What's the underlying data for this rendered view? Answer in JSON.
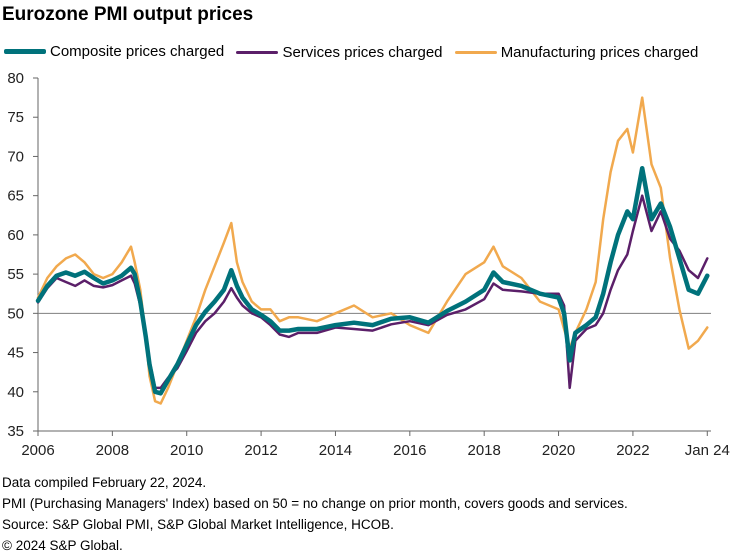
{
  "title": "Eurozone PMI output prices",
  "colors": {
    "composite": "#00727b",
    "services": "#5b1f69",
    "manufacturing": "#f1a94e"
  },
  "notes": [
    "Data compiled February 22, 2024.",
    "PMI (Purchasing Managers' Index) based on 50 = no change on prior month, covers goods and services.",
    "Source: S&P Global PMI, S&P Global Market Intelligence, HCOB.",
    "© 2024 S&P Global."
  ],
  "chart_data": {
    "type": "line",
    "title": "Eurozone PMI output prices",
    "xlabel": "",
    "ylabel": "",
    "xlim": [
      2006.0,
      2024.1
    ],
    "ylim": [
      35,
      80
    ],
    "yticks": [
      35,
      40,
      45,
      50,
      55,
      60,
      65,
      70,
      75,
      80
    ],
    "xticks": [
      {
        "value": 2006.0,
        "label": "2006"
      },
      {
        "value": 2008.0,
        "label": "2008"
      },
      {
        "value": 2010.0,
        "label": "2010"
      },
      {
        "value": 2012.0,
        "label": "2012"
      },
      {
        "value": 2014.0,
        "label": "2014"
      },
      {
        "value": 2016.0,
        "label": "2016"
      },
      {
        "value": 2018.0,
        "label": "2018"
      },
      {
        "value": 2020.0,
        "label": "2020"
      },
      {
        "value": 2022.0,
        "label": "2022"
      },
      {
        "value": 2024.0,
        "label": "Jan 24"
      }
    ],
    "reference_line": 50,
    "grid": false,
    "legend_position": "top",
    "series": [
      {
        "name": "Composite prices charged",
        "key": "composite",
        "points": [
          [
            2006.0,
            51.6
          ],
          [
            2006.25,
            53.5
          ],
          [
            2006.5,
            54.8
          ],
          [
            2006.75,
            55.2
          ],
          [
            2007.0,
            54.8
          ],
          [
            2007.25,
            55.3
          ],
          [
            2007.5,
            54.5
          ],
          [
            2007.75,
            53.8
          ],
          [
            2008.0,
            54.2
          ],
          [
            2008.25,
            54.8
          ],
          [
            2008.5,
            55.8
          ],
          [
            2008.6,
            55.0
          ],
          [
            2008.75,
            51.5
          ],
          [
            2008.9,
            47.0
          ],
          [
            2009.0,
            43.5
          ],
          [
            2009.15,
            40.0
          ],
          [
            2009.3,
            39.8
          ],
          [
            2009.5,
            41.5
          ],
          [
            2009.75,
            43.5
          ],
          [
            2010.0,
            46.0
          ],
          [
            2010.25,
            48.5
          ],
          [
            2010.5,
            50.2
          ],
          [
            2010.75,
            51.5
          ],
          [
            2011.0,
            53.0
          ],
          [
            2011.2,
            55.5
          ],
          [
            2011.35,
            53.5
          ],
          [
            2011.5,
            52.0
          ],
          [
            2011.75,
            50.5
          ],
          [
            2012.0,
            49.8
          ],
          [
            2012.25,
            49.0
          ],
          [
            2012.5,
            47.8
          ],
          [
            2012.75,
            47.8
          ],
          [
            2013.0,
            48.0
          ],
          [
            2013.5,
            48.0
          ],
          [
            2014.0,
            48.5
          ],
          [
            2014.5,
            48.8
          ],
          [
            2015.0,
            48.5
          ],
          [
            2015.5,
            49.3
          ],
          [
            2016.0,
            49.5
          ],
          [
            2016.5,
            48.8
          ],
          [
            2017.0,
            50.3
          ],
          [
            2017.5,
            51.5
          ],
          [
            2018.0,
            53.0
          ],
          [
            2018.25,
            55.2
          ],
          [
            2018.5,
            54.0
          ],
          [
            2019.0,
            53.5
          ],
          [
            2019.5,
            52.5
          ],
          [
            2020.0,
            52.0
          ],
          [
            2020.15,
            50.0
          ],
          [
            2020.3,
            44.0
          ],
          [
            2020.45,
            47.5
          ],
          [
            2020.75,
            48.5
          ],
          [
            2021.0,
            49.5
          ],
          [
            2021.2,
            52.5
          ],
          [
            2021.4,
            56.5
          ],
          [
            2021.6,
            60.0
          ],
          [
            2021.85,
            63.0
          ],
          [
            2022.0,
            62.0
          ],
          [
            2022.25,
            68.5
          ],
          [
            2022.5,
            62.0
          ],
          [
            2022.75,
            64.0
          ],
          [
            2023.0,
            61.0
          ],
          [
            2023.25,
            57.0
          ],
          [
            2023.5,
            53.0
          ],
          [
            2023.75,
            52.5
          ],
          [
            2024.0,
            54.8
          ]
        ]
      },
      {
        "name": "Services prices charged",
        "key": "services",
        "points": [
          [
            2006.0,
            51.4
          ],
          [
            2006.25,
            53.2
          ],
          [
            2006.5,
            54.5
          ],
          [
            2006.75,
            54.0
          ],
          [
            2007.0,
            53.5
          ],
          [
            2007.25,
            54.2
          ],
          [
            2007.5,
            53.5
          ],
          [
            2007.75,
            53.3
          ],
          [
            2008.0,
            53.6
          ],
          [
            2008.25,
            54.2
          ],
          [
            2008.5,
            54.8
          ],
          [
            2008.6,
            53.8
          ],
          [
            2008.75,
            51.0
          ],
          [
            2008.9,
            47.5
          ],
          [
            2009.0,
            44.0
          ],
          [
            2009.15,
            40.5
          ],
          [
            2009.3,
            40.5
          ],
          [
            2009.5,
            41.8
          ],
          [
            2009.75,
            43.0
          ],
          [
            2010.0,
            45.2
          ],
          [
            2010.25,
            47.5
          ],
          [
            2010.5,
            49.0
          ],
          [
            2010.75,
            50.0
          ],
          [
            2011.0,
            51.5
          ],
          [
            2011.2,
            53.2
          ],
          [
            2011.35,
            52.0
          ],
          [
            2011.5,
            51.0
          ],
          [
            2011.75,
            50.0
          ],
          [
            2012.0,
            49.5
          ],
          [
            2012.25,
            48.5
          ],
          [
            2012.5,
            47.3
          ],
          [
            2012.75,
            47.0
          ],
          [
            2013.0,
            47.5
          ],
          [
            2013.5,
            47.5
          ],
          [
            2014.0,
            48.2
          ],
          [
            2014.5,
            48.0
          ],
          [
            2015.0,
            47.8
          ],
          [
            2015.5,
            48.6
          ],
          [
            2016.0,
            49.0
          ],
          [
            2016.5,
            48.5
          ],
          [
            2017.0,
            49.8
          ],
          [
            2017.5,
            50.5
          ],
          [
            2018.0,
            51.8
          ],
          [
            2018.25,
            53.8
          ],
          [
            2018.5,
            53.0
          ],
          [
            2019.0,
            52.8
          ],
          [
            2019.5,
            52.5
          ],
          [
            2020.0,
            52.5
          ],
          [
            2020.15,
            51.0
          ],
          [
            2020.3,
            40.5
          ],
          [
            2020.45,
            46.5
          ],
          [
            2020.75,
            48.0
          ],
          [
            2021.0,
            48.5
          ],
          [
            2021.2,
            50.0
          ],
          [
            2021.4,
            53.0
          ],
          [
            2021.6,
            55.5
          ],
          [
            2021.85,
            57.5
          ],
          [
            2022.0,
            60.5
          ],
          [
            2022.25,
            65.0
          ],
          [
            2022.5,
            60.5
          ],
          [
            2022.75,
            63.0
          ],
          [
            2023.0,
            59.5
          ],
          [
            2023.25,
            58.0
          ],
          [
            2023.5,
            55.5
          ],
          [
            2023.75,
            54.5
          ],
          [
            2024.0,
            57.0
          ]
        ]
      },
      {
        "name": "Manufacturing prices charged",
        "key": "manufacturing",
        "points": [
          [
            2006.0,
            52.0
          ],
          [
            2006.25,
            54.5
          ],
          [
            2006.5,
            56.0
          ],
          [
            2006.75,
            57.0
          ],
          [
            2007.0,
            57.5
          ],
          [
            2007.25,
            56.5
          ],
          [
            2007.5,
            55.0
          ],
          [
            2007.75,
            54.5
          ],
          [
            2008.0,
            55.0
          ],
          [
            2008.25,
            56.5
          ],
          [
            2008.5,
            58.5
          ],
          [
            2008.6,
            56.5
          ],
          [
            2008.75,
            53.0
          ],
          [
            2008.9,
            47.0
          ],
          [
            2009.0,
            42.0
          ],
          [
            2009.15,
            38.8
          ],
          [
            2009.3,
            38.5
          ],
          [
            2009.5,
            40.5
          ],
          [
            2009.75,
            43.5
          ],
          [
            2010.0,
            46.5
          ],
          [
            2010.25,
            49.5
          ],
          [
            2010.5,
            53.0
          ],
          [
            2010.75,
            56.0
          ],
          [
            2011.0,
            59.0
          ],
          [
            2011.2,
            61.5
          ],
          [
            2011.35,
            56.5
          ],
          [
            2011.5,
            54.0
          ],
          [
            2011.75,
            51.5
          ],
          [
            2012.0,
            50.5
          ],
          [
            2012.25,
            50.5
          ],
          [
            2012.5,
            49.0
          ],
          [
            2012.75,
            49.5
          ],
          [
            2013.0,
            49.5
          ],
          [
            2013.5,
            49.0
          ],
          [
            2014.0,
            50.0
          ],
          [
            2014.5,
            51.0
          ],
          [
            2015.0,
            49.5
          ],
          [
            2015.5,
            50.0
          ],
          [
            2016.0,
            48.5
          ],
          [
            2016.5,
            47.5
          ],
          [
            2017.0,
            51.5
          ],
          [
            2017.5,
            55.0
          ],
          [
            2018.0,
            56.5
          ],
          [
            2018.25,
            58.5
          ],
          [
            2018.5,
            56.0
          ],
          [
            2019.0,
            54.5
          ],
          [
            2019.5,
            51.5
          ],
          [
            2020.0,
            50.5
          ],
          [
            2020.15,
            48.0
          ],
          [
            2020.3,
            45.5
          ],
          [
            2020.45,
            47.5
          ],
          [
            2020.75,
            50.5
          ],
          [
            2021.0,
            54.0
          ],
          [
            2021.2,
            62.0
          ],
          [
            2021.4,
            68.0
          ],
          [
            2021.6,
            72.0
          ],
          [
            2021.85,
            73.5
          ],
          [
            2022.0,
            70.5
          ],
          [
            2022.25,
            77.5
          ],
          [
            2022.5,
            69.0
          ],
          [
            2022.75,
            66.0
          ],
          [
            2023.0,
            57.0
          ],
          [
            2023.25,
            50.5
          ],
          [
            2023.5,
            45.5
          ],
          [
            2023.75,
            46.5
          ],
          [
            2024.0,
            48.2
          ]
        ]
      }
    ]
  }
}
